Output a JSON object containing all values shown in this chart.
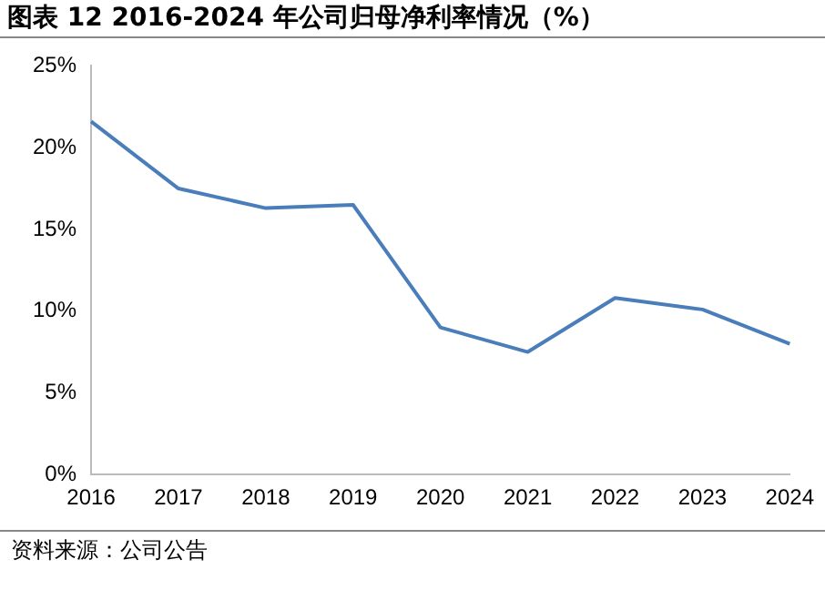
{
  "chart_data": {
    "type": "line",
    "title": "图表 12 2016-2024 年公司归母净利率情况（%）",
    "categories": [
      "2016",
      "2017",
      "2018",
      "2019",
      "2020",
      "2021",
      "2022",
      "2023",
      "2024"
    ],
    "values": [
      21.6,
      17.5,
      16.3,
      16.5,
      9.0,
      7.5,
      10.8,
      10.1,
      8.0
    ],
    "color": "#4a7ebb",
    "ylim": [
      0,
      25
    ],
    "yticks": [
      {
        "value": 0,
        "label": "0%"
      },
      {
        "value": 5,
        "label": "5%"
      },
      {
        "value": 10,
        "label": "10%"
      },
      {
        "value": 15,
        "label": "15%"
      },
      {
        "value": 20,
        "label": "20%"
      },
      {
        "value": 25,
        "label": "25%"
      }
    ],
    "grid": false,
    "legend": false,
    "marker": "none",
    "line_style": "solid",
    "annotations": [
      "资料来源：公司公告"
    ]
  }
}
